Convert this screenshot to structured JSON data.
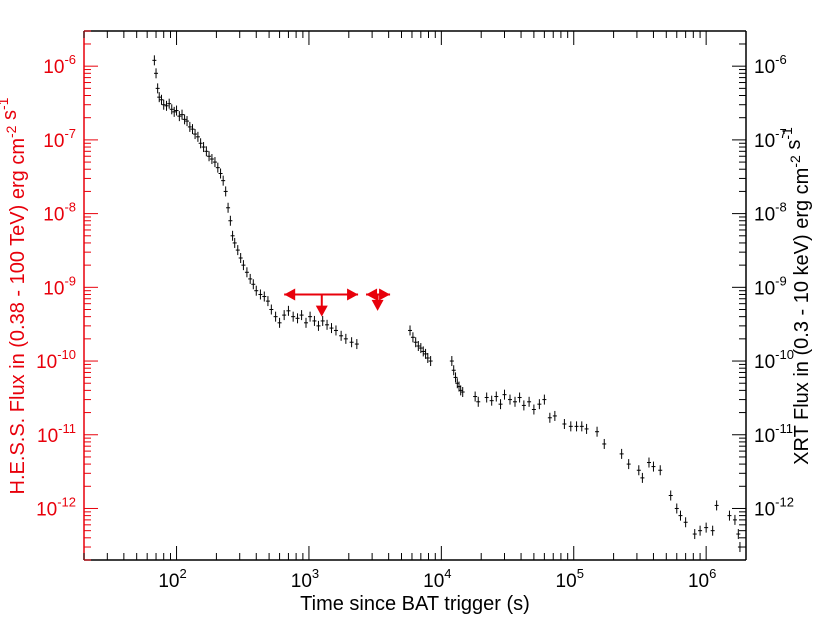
{
  "chart_data": {
    "type": "scatter",
    "x_scale": "log",
    "y_scale": "log",
    "xlim": [
      20,
      2000000
    ],
    "ylim": [
      2e-13,
      3e-06
    ],
    "xlabel": "Time since BAT trigger (s)",
    "ylabel_left": "H.E.S.S. Flux in (0.38 - 100 TeV) erg cm^-2 s^-1",
    "ylabel_right": "XRT Flux in (0.3 - 10 keV) erg cm^-2 s^-1",
    "x_ticks": [
      {
        "value": 100,
        "base": "10",
        "exp": "2"
      },
      {
        "value": 1000,
        "base": "10",
        "exp": "3"
      },
      {
        "value": 10000,
        "base": "10",
        "exp": "4"
      },
      {
        "value": 100000,
        "base": "10",
        "exp": "5"
      },
      {
        "value": 1000000,
        "base": "10",
        "exp": "6"
      }
    ],
    "y_ticks": [
      {
        "value": 1e-12,
        "base": "10",
        "exp": "-12"
      },
      {
        "value": 1e-11,
        "base": "10",
        "exp": "-11"
      },
      {
        "value": 1e-10,
        "base": "10",
        "exp": "-10"
      },
      {
        "value": 1e-09,
        "base": "10",
        "exp": "-9"
      },
      {
        "value": 1e-08,
        "base": "10",
        "exp": "-8"
      },
      {
        "value": 1e-07,
        "base": "10",
        "exp": "-7"
      },
      {
        "value": 1e-06,
        "base": "10",
        "exp": "-6"
      }
    ],
    "colors": {
      "hess": "#e8000b",
      "xrt": "#000000",
      "axis": "#000000"
    },
    "series": [
      {
        "role": "xrt",
        "marker": "errorbar",
        "points": [
          [
            68,
            1.2e-06
          ],
          [
            70,
            8e-07
          ],
          [
            72,
            5e-07
          ],
          [
            74,
            3.8e-07
          ],
          [
            77,
            3.5e-07
          ],
          [
            80,
            3e-07
          ],
          [
            84,
            2.9e-07
          ],
          [
            88,
            3.1e-07
          ],
          [
            92,
            2.6e-07
          ],
          [
            96,
            2.4e-07
          ],
          [
            100,
            2.5e-07
          ],
          [
            105,
            2.1e-07
          ],
          [
            110,
            2.2e-07
          ],
          [
            115,
            1.9e-07
          ],
          [
            120,
            1.8e-07
          ],
          [
            126,
            1.5e-07
          ],
          [
            132,
            1.4e-07
          ],
          [
            138,
            1.2e-07
          ],
          [
            145,
            1.1e-07
          ],
          [
            152,
            9e-08
          ],
          [
            160,
            8e-08
          ],
          [
            168,
            7e-08
          ],
          [
            176,
            6e-08
          ],
          [
            185,
            5.5e-08
          ],
          [
            195,
            5e-08
          ],
          [
            205,
            4.2e-08
          ],
          [
            215,
            3.5e-08
          ],
          [
            225,
            2.8e-08
          ],
          [
            235,
            2e-08
          ],
          [
            245,
            1.2e-08
          ],
          [
            255,
            8e-09
          ],
          [
            265,
            5e-09
          ],
          [
            275,
            4e-09
          ],
          [
            290,
            3.2e-09
          ],
          [
            305,
            2.5e-09
          ],
          [
            320,
            2e-09
          ],
          [
            340,
            1.6e-09
          ],
          [
            360,
            1.3e-09
          ],
          [
            380,
            1.1e-09
          ],
          [
            400,
            9e-10
          ],
          [
            430,
            8e-10
          ],
          [
            460,
            7.5e-10
          ],
          [
            490,
            6.5e-10
          ],
          [
            520,
            5e-10
          ],
          [
            560,
            4e-10
          ],
          [
            600,
            3.3e-10
          ],
          [
            650,
            4.2e-10
          ],
          [
            700,
            4.8e-10
          ],
          [
            760,
            4e-10
          ],
          [
            820,
            3.8e-10
          ],
          [
            880,
            4.2e-10
          ],
          [
            950,
            3.3e-10
          ],
          [
            1020,
            4e-10
          ],
          [
            1100,
            3.5e-10
          ],
          [
            1180,
            3e-10
          ],
          [
            1270,
            3.5e-10
          ],
          [
            1370,
            3.1e-10
          ],
          [
            1480,
            2.8e-10
          ],
          [
            1600,
            2.6e-10
          ],
          [
            1750,
            2.2e-10
          ],
          [
            1900,
            2e-10
          ],
          [
            2100,
            1.8e-10
          ],
          [
            2300,
            1.7e-10
          ],
          [
            5800,
            2.6e-10
          ],
          [
            6100,
            2.1e-10
          ],
          [
            6400,
            1.8e-10
          ],
          [
            6700,
            1.6e-10
          ],
          [
            7000,
            1.5e-10
          ],
          [
            7300,
            1.35e-10
          ],
          [
            7600,
            1.25e-10
          ],
          [
            7900,
            1.1e-10
          ],
          [
            8300,
            1e-10
          ],
          [
            12000,
            1e-10
          ],
          [
            12400,
            7.5e-11
          ],
          [
            12800,
            6e-11
          ],
          [
            13200,
            5e-11
          ],
          [
            13600,
            4.5e-11
          ],
          [
            14000,
            4e-11
          ],
          [
            14500,
            3.8e-11
          ],
          [
            18000,
            3.3e-11
          ],
          [
            19000,
            2.8e-11
          ],
          [
            22000,
            3.2e-11
          ],
          [
            24000,
            2.9e-11
          ],
          [
            26000,
            3.3e-11
          ],
          [
            28000,
            2.6e-11
          ],
          [
            30000,
            3.5e-11
          ],
          [
            33000,
            3e-11
          ],
          [
            36000,
            2.8e-11
          ],
          [
            39000,
            3.2e-11
          ],
          [
            42000,
            2.5e-11
          ],
          [
            46000,
            2.8e-11
          ],
          [
            50000,
            2.2e-11
          ],
          [
            55000,
            2.6e-11
          ],
          [
            60000,
            3e-11
          ],
          [
            66000,
            1.7e-11
          ],
          [
            72000,
            1.8e-11
          ],
          [
            85000,
            1.4e-11
          ],
          [
            95000,
            1.3e-11
          ],
          [
            105000,
            1.3e-11
          ],
          [
            115000,
            1.3e-11
          ],
          [
            125000,
            1.2e-11
          ],
          [
            150000,
            1.1e-11
          ],
          [
            170000,
            7.5e-12
          ],
          [
            230000,
            5.5e-12
          ],
          [
            260000,
            4e-12
          ],
          [
            310000,
            3.3e-12
          ],
          [
            330000,
            2.6e-12
          ],
          [
            370000,
            4.2e-12
          ],
          [
            400000,
            3.7e-12
          ],
          [
            450000,
            3.3e-12
          ],
          [
            540000,
            1.5e-12
          ],
          [
            600000,
            1e-12
          ],
          [
            640000,
            8e-13
          ],
          [
            700000,
            6.5e-13
          ],
          [
            820000,
            4.5e-13
          ],
          [
            900000,
            5e-13
          ],
          [
            1000000,
            5.5e-13
          ],
          [
            1120000,
            5e-13
          ],
          [
            1200000,
            1.1e-12
          ],
          [
            1500000,
            8e-13
          ],
          [
            1650000,
            7e-13
          ],
          [
            1750000,
            4.5e-13
          ],
          [
            1800000,
            3e-13
          ]
        ]
      },
      {
        "role": "hess_upper_limits",
        "marker": "upper-limit",
        "points": [
          {
            "x": 1250,
            "x_lo": 650,
            "x_hi": 2350,
            "y": 8e-10,
            "y_arrow_to": 4e-10
          },
          {
            "x": 3300,
            "x_lo": 2700,
            "x_hi": 4100,
            "y": 8e-10,
            "y_arrow_to": 4.8e-10
          }
        ]
      }
    ]
  }
}
